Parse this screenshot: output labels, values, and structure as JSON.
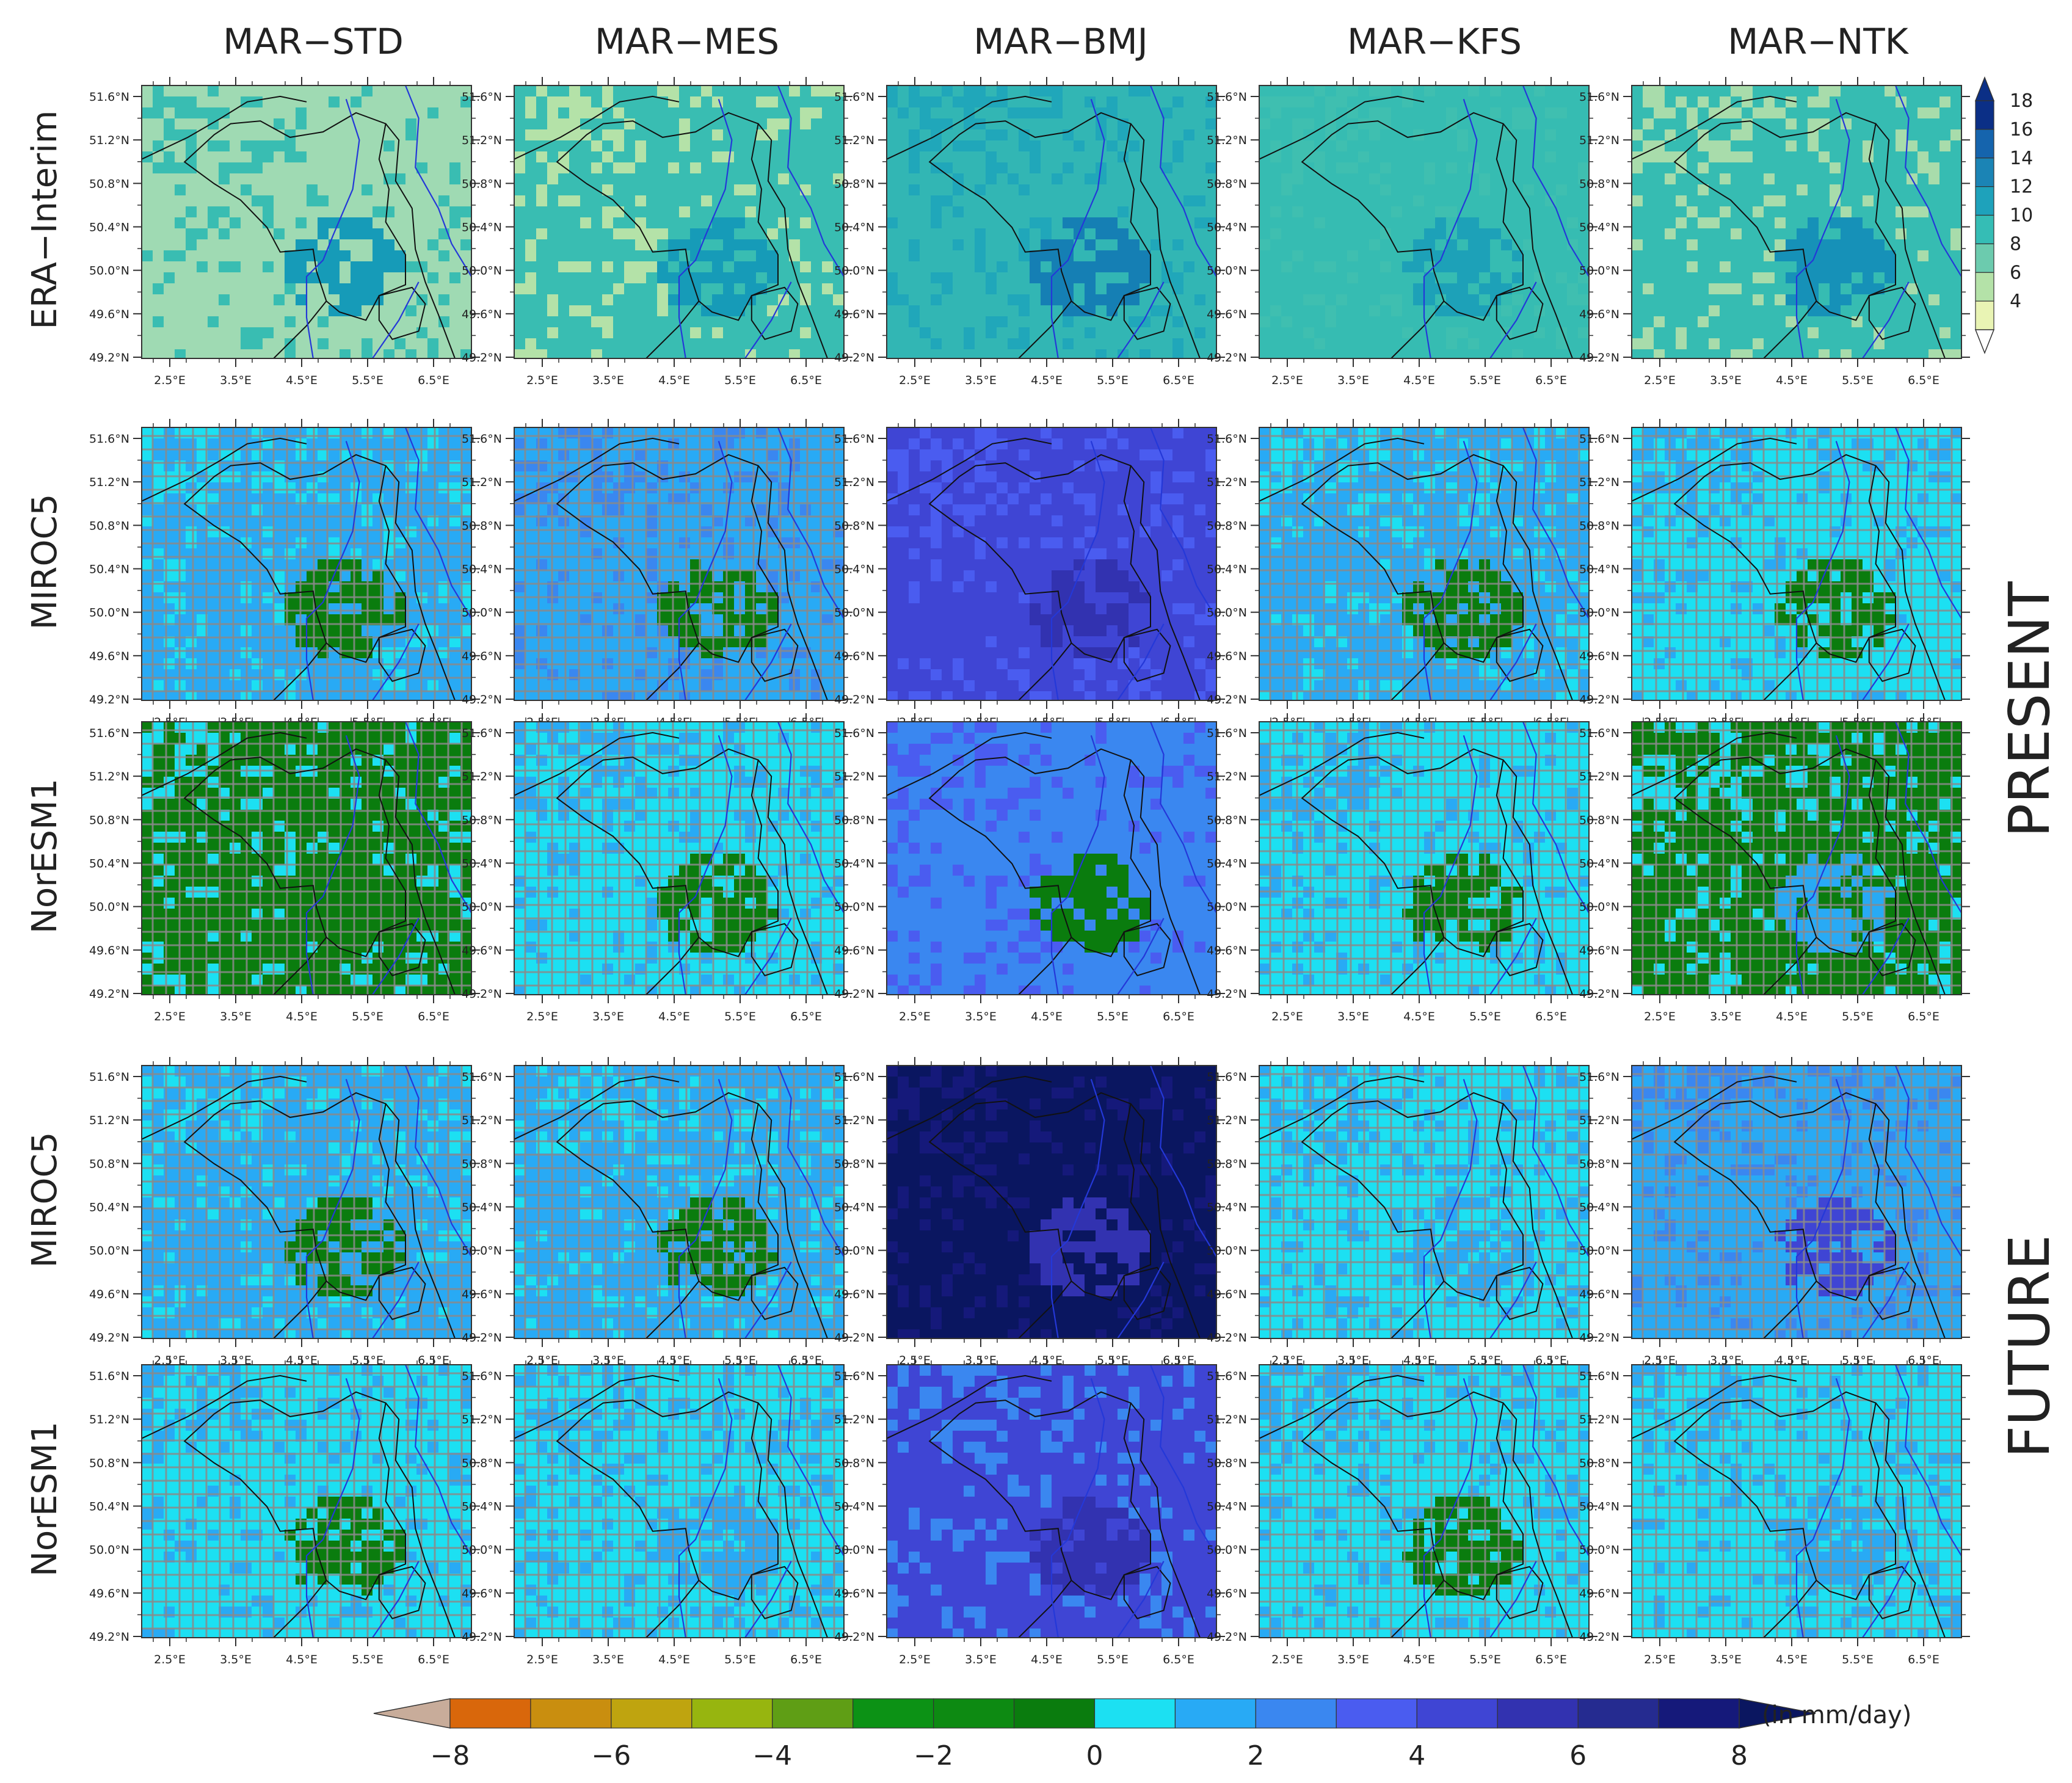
{
  "columns": [
    "MAR−STD",
    "MAR−MES",
    "MAR−BMJ",
    "MAR−KFS",
    "MAR−NTK"
  ],
  "rows": [
    "ERA−Interim",
    "MIROC5",
    "NorESM1",
    "MIROC5",
    "NorESM1"
  ],
  "period_labels": [
    "PRESENT",
    "FUTURE"
  ],
  "lat_ticks": [
    "51.6°N",
    "51.2°N",
    "50.8°N",
    "50.4°N",
    "50.0°N",
    "49.6°N",
    "49.2°N"
  ],
  "lon_ticks": [
    "2.5°E",
    "3.5°E",
    "4.5°E",
    "5.5°E",
    "6.5°E"
  ],
  "era_colorbar": {
    "labels": [
      "18",
      "16",
      "14",
      "12",
      "10",
      "8",
      "6",
      "4"
    ],
    "colors": [
      "#0b2f86",
      "#1564ad",
      "#1b84b5",
      "#1ea2bb",
      "#35bdb5",
      "#6ccbae",
      "#b4e2a8",
      "#e9f4b4"
    ]
  },
  "diff_colorbar": {
    "labels": [
      "−8",
      "−6",
      "−4",
      "−2",
      "0",
      "2",
      "4",
      "6",
      "8"
    ],
    "unit": "(in mm/day)",
    "under_color": "#c8ac9a",
    "over_color": "#0a1660",
    "colors": [
      "#d9670b",
      "#c98e0f",
      "#bfa40f",
      "#97b50f",
      "#5f9e15",
      "#0c9215",
      "#0d8a12",
      "#0a7c0e",
      "#1ce0f2",
      "#28aaf5",
      "#3a87f0",
      "#4a5cf0",
      "#3f45d4",
      "#3232b0",
      "#252b90",
      "#15197a"
    ]
  },
  "panels": [
    [
      {
        "tone": "#9fdab3",
        "tone2": "#39bdb2",
        "blob": "#169bb8"
      },
      {
        "tone": "#39bdb2",
        "tone2": "#b4e2a8",
        "blob": "#169bb8"
      },
      {
        "tone": "#32b6b4",
        "tone2": "#20a7ba",
        "blob": "#157fb4"
      },
      {
        "tone": "#36bcb2",
        "tone2": "#3fbfb0",
        "blob": "#1da1b8"
      },
      {
        "tone": "#36bcb2",
        "tone2": "#a8dcab",
        "blob": "#1691b8"
      }
    ],
    [
      {
        "tone": "#28aaf5",
        "tone2": "#1ce0f2",
        "blob": "#0a7c0e",
        "grid": true
      },
      {
        "tone": "#28aaf5",
        "tone2": "#3a87f0",
        "blob": "#0a7c0e",
        "grid": true
      },
      {
        "tone": "#3f45d4",
        "tone2": "#4a5cf0",
        "blob": "#3232b0",
        "grid": false
      },
      {
        "tone": "#28aaf5",
        "tone2": "#1ce0f2",
        "blob": "#0a7c0e",
        "grid": true
      },
      {
        "tone": "#1ce0f2",
        "tone2": "#28aaf5",
        "blob": "#0a7c0e",
        "grid": true
      }
    ],
    [
      {
        "tone": "#0a7c0e",
        "tone2": "#1ce0f2",
        "blob": "#0a7c0e",
        "grid": true
      },
      {
        "tone": "#1ce0f2",
        "tone2": "#28aaf5",
        "blob": "#0a7c0e",
        "grid": true
      },
      {
        "tone": "#3a87f0",
        "tone2": "#4a5cf0",
        "blob": "#0a7c0e",
        "grid": false
      },
      {
        "tone": "#1ce0f2",
        "tone2": "#28aaf5",
        "blob": "#0a7c0e",
        "grid": true
      },
      {
        "tone": "#0a7c0e",
        "tone2": "#1ce0f2",
        "blob": "#28aaf5",
        "grid": true
      }
    ],
    [
      {
        "tone": "#28aaf5",
        "tone2": "#1ce0f2",
        "blob": "#0a7c0e",
        "grid": true
      },
      {
        "tone": "#28aaf5",
        "tone2": "#1ce0f2",
        "blob": "#0a7c0e",
        "grid": true
      },
      {
        "tone": "#0a1660",
        "tone2": "#15197a",
        "blob": "#3232b0",
        "grid": false
      },
      {
        "tone": "#1ce0f2",
        "tone2": "#28aaf5",
        "blob": "#28aaf5",
        "grid": true
      },
      {
        "tone": "#28aaf5",
        "tone2": "#3a87f0",
        "blob": "#3f45d4",
        "grid": true
      }
    ],
    [
      {
        "tone": "#1ce0f2",
        "tone2": "#28aaf5",
        "blob": "#0a7c0e",
        "grid": true
      },
      {
        "tone": "#1ce0f2",
        "tone2": "#28aaf5",
        "blob": "#28aaf5",
        "grid": true
      },
      {
        "tone": "#3f45d4",
        "tone2": "#3a87f0",
        "blob": "#3232b0",
        "grid": false
      },
      {
        "tone": "#1ce0f2",
        "tone2": "#28aaf5",
        "blob": "#0a7c0e",
        "grid": true
      },
      {
        "tone": "#1ce0f2",
        "tone2": "#28aaf5",
        "blob": "#28aaf5",
        "grid": true
      }
    ]
  ]
}
